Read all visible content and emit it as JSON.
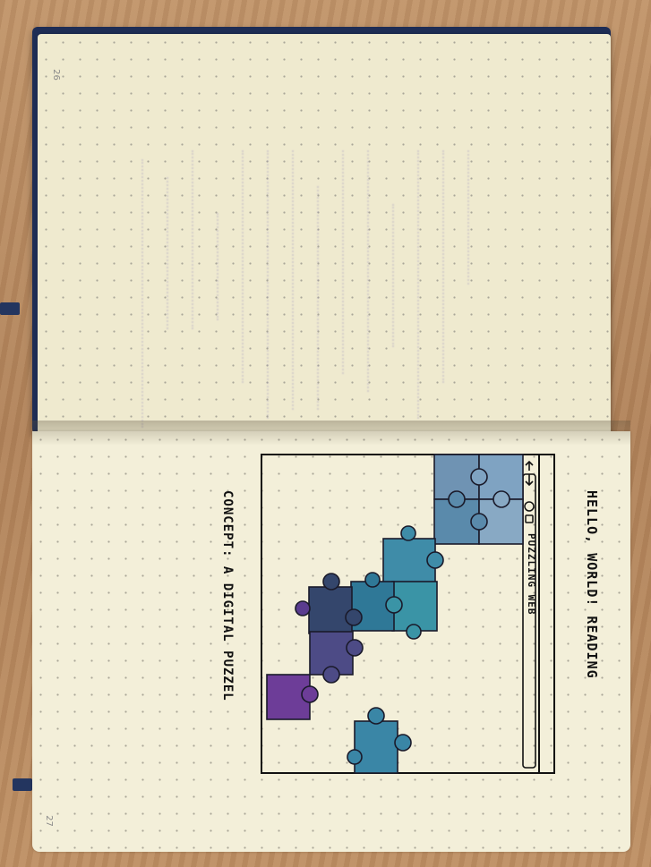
{
  "notebook": {
    "left_page_number": "26",
    "right_page_number": "27",
    "title": "HELLO, WORLD! READING",
    "caption": "CONCEPT: A DIGITAL PUZZEL",
    "browser": {
      "back_icon": "left-arrow-icon",
      "forward_icon": "right-arrow-icon",
      "refresh_icon": "refresh-icon",
      "lock_icon": "lock-icon",
      "address_text": "PUZZLING WEB"
    },
    "colors": {
      "puzzle_light_blue": "#7fa9c6",
      "puzzle_teal": "#3e8aa3",
      "puzzle_navy": "#33486e",
      "puzzle_purple": "#6b3f95",
      "paper": "#f3efd9",
      "cover": "#1e2d55"
    }
  }
}
